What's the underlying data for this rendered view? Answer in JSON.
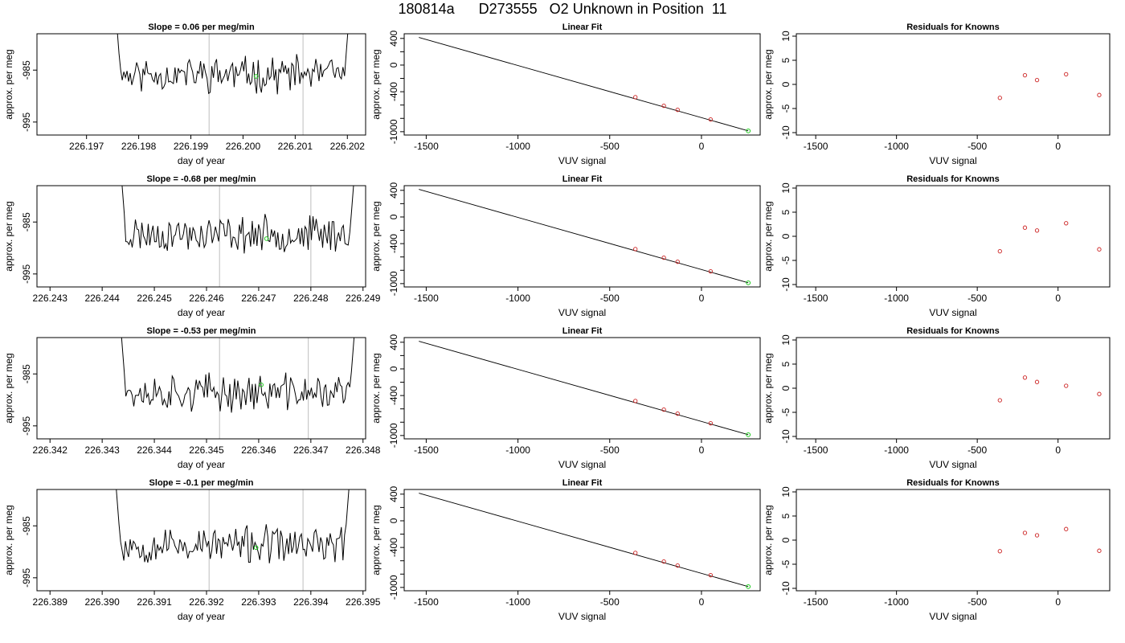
{
  "page": {
    "title": "180814a      D273555   O2 Unknown in Position  11"
  },
  "colors": {
    "trace": "#000000",
    "highlight_point": "#22cc22",
    "known_points": "#cc2222",
    "gap_lines": "#c8c8c8",
    "fit_line": "#000000"
  },
  "chart_data": [
    {
      "type": "line",
      "row": 1,
      "title": "Slope =  0.06  per meg/min",
      "xlabel": "day of year",
      "ylabel": "approx. per meg",
      "xlim": [
        226.19605,
        226.20235
      ],
      "ylim": [
        -997.5,
        -978
      ],
      "xticks": [
        226.197,
        226.198,
        226.199,
        226.2,
        226.201,
        226.202
      ],
      "xtick_labels": [
        "226.197",
        "226.198",
        "226.199",
        "226.200",
        "226.201",
        "226.202"
      ],
      "yticks": [
        -985,
        -995
      ],
      "ytick_labels": [
        "-985",
        "-995"
      ],
      "trace_x": [
        226.1975,
        226.2021
      ],
      "trace_mean": -985.8,
      "trace_amp": 2.7,
      "seed": 11,
      "vlines": [
        226.19935,
        226.20115
      ],
      "highlight": {
        "x": 226.20025,
        "y": -986.2
      }
    },
    {
      "type": "line",
      "row": 2,
      "title": "Slope =  -0.68  per meg/min",
      "xlabel": "day of year",
      "ylabel": "approx. per meg",
      "xlim": [
        226.24275,
        226.24905
      ],
      "ylim": [
        -997.5,
        -978
      ],
      "xticks": [
        226.243,
        226.244,
        226.245,
        226.246,
        226.247,
        226.248,
        226.249
      ],
      "xtick_labels": [
        "226.243",
        "226.244",
        "226.245",
        "226.246",
        "226.247",
        "226.248",
        "226.249"
      ],
      "yticks": [
        -985,
        -995
      ],
      "ytick_labels": [
        "-985",
        "-995"
      ],
      "trace_x": [
        226.2443,
        226.2489
      ],
      "trace_mean": -987.3,
      "trace_amp": 2.7,
      "seed": 23,
      "vlines": [
        226.24625,
        226.248
      ],
      "highlight": {
        "x": 226.24715,
        "y": -988.2
      }
    },
    {
      "type": "line",
      "row": 3,
      "title": "Slope =  -0.53  per meg/min",
      "xlabel": "day of year",
      "ylabel": "approx. per meg",
      "xlim": [
        226.34175,
        226.34805
      ],
      "ylim": [
        -997.5,
        -978
      ],
      "xticks": [
        226.342,
        226.343,
        226.344,
        226.345,
        226.346,
        226.347,
        226.348
      ],
      "xtick_labels": [
        "226.342",
        "226.343",
        "226.344",
        "226.345",
        "226.346",
        "226.347",
        "226.348"
      ],
      "yticks": [
        -985,
        -995
      ],
      "ytick_labels": [
        "-985",
        "-995"
      ],
      "trace_x": [
        226.3433,
        226.3479
      ],
      "trace_mean": -988.6,
      "trace_amp": 2.8,
      "seed": 37,
      "vlines": [
        226.34525,
        226.34695
      ],
      "highlight": {
        "x": 226.34605,
        "y": -987.1
      }
    },
    {
      "type": "line",
      "row": 4,
      "title": "Slope =  -0.1  per meg/min",
      "xlabel": "day of year",
      "ylabel": "approx. per meg",
      "xlim": [
        226.38875,
        226.39505
      ],
      "ylim": [
        -997.5,
        -978
      ],
      "xticks": [
        226.389,
        226.39,
        226.391,
        226.392,
        226.393,
        226.394,
        226.395
      ],
      "xtick_labels": [
        "226.389",
        "226.390",
        "226.391",
        "226.392",
        "226.393",
        "226.394",
        "226.395"
      ],
      "yticks": [
        -985,
        -995
      ],
      "ytick_labels": [
        "-985",
        "-995"
      ],
      "trace_x": [
        226.3902,
        226.3948
      ],
      "trace_mean": -988.7,
      "trace_amp": 2.8,
      "seed": 53,
      "vlines": [
        226.39205,
        226.39385
      ],
      "highlight": {
        "x": 226.39295,
        "y": -989.2
      }
    },
    {
      "type": "scatter",
      "row": 1,
      "title": "Linear Fit",
      "xlabel": "VUV signal",
      "ylabel": "approx. per meg",
      "xlim": [
        -1620,
        320
      ],
      "ylim": [
        -1050,
        470
      ],
      "xticks": [
        -1500,
        -1000,
        -500,
        0
      ],
      "xtick_labels": [
        "-1500",
        "-1000",
        "-500",
        "0"
      ],
      "yticks": [
        400,
        0,
        -400,
        -1000
      ],
      "ytick_labels": [
        "400",
        "0",
        "-400",
        "-1000"
      ],
      "fit_line": {
        "x": [
          -1540,
          255
        ],
        "y": [
          415,
          -988
        ]
      },
      "points_x": [
        -360,
        -205,
        -130,
        50
      ],
      "points_y": [
        -482,
        -611,
        -672,
        -817
      ],
      "highlight": {
        "x": 255,
        "y": -988
      }
    },
    {
      "type": "scatter",
      "row": 2,
      "title": "Linear Fit",
      "xlabel": "VUV signal",
      "ylabel": "approx. per meg",
      "xlim": [
        -1620,
        320
      ],
      "ylim": [
        -1050,
        470
      ],
      "xticks": [
        -1500,
        -1000,
        -500,
        0
      ],
      "xtick_labels": [
        "-1500",
        "-1000",
        "-500",
        "0"
      ],
      "yticks": [
        400,
        0,
        -400,
        -1000
      ],
      "ytick_labels": [
        "400",
        "0",
        "-400",
        "-1000"
      ],
      "fit_line": {
        "x": [
          -1540,
          255
        ],
        "y": [
          415,
          -988
        ]
      },
      "points_x": [
        -360,
        -205,
        -130,
        50
      ],
      "points_y": [
        -482,
        -611,
        -672,
        -817
      ],
      "highlight": {
        "x": 255,
        "y": -988
      }
    },
    {
      "type": "scatter",
      "row": 3,
      "title": "Linear Fit",
      "xlabel": "VUV signal",
      "ylabel": "approx. per meg",
      "xlim": [
        -1620,
        320
      ],
      "ylim": [
        -1050,
        470
      ],
      "xticks": [
        -1500,
        -1000,
        -500,
        0
      ],
      "xtick_labels": [
        "-1500",
        "-1000",
        "-500",
        "0"
      ],
      "yticks": [
        400,
        0,
        -400,
        -1000
      ],
      "ytick_labels": [
        "400",
        "0",
        "-400",
        "-1000"
      ],
      "fit_line": {
        "x": [
          -1540,
          255
        ],
        "y": [
          415,
          -988
        ]
      },
      "points_x": [
        -360,
        -205,
        -130,
        50
      ],
      "points_y": [
        -482,
        -611,
        -672,
        -817
      ],
      "highlight": {
        "x": 255,
        "y": -988
      }
    },
    {
      "type": "scatter",
      "row": 4,
      "title": "Linear Fit",
      "xlabel": "VUV signal",
      "ylabel": "approx. per meg",
      "xlim": [
        -1620,
        320
      ],
      "ylim": [
        -1050,
        470
      ],
      "xticks": [
        -1500,
        -1000,
        -500,
        0
      ],
      "xtick_labels": [
        "-1500",
        "-1000",
        "-500",
        "0"
      ],
      "yticks": [
        400,
        0,
        -400,
        -1000
      ],
      "ytick_labels": [
        "400",
        "0",
        "-400",
        "-1000"
      ],
      "fit_line": {
        "x": [
          -1540,
          255
        ],
        "y": [
          415,
          -988
        ]
      },
      "points_x": [
        -360,
        -205,
        -130,
        50
      ],
      "points_y": [
        -482,
        -611,
        -672,
        -817
      ],
      "highlight": {
        "x": 255,
        "y": -988
      }
    },
    {
      "type": "scatter",
      "row": 1,
      "title": "Residuals for Knowns",
      "xlabel": "VUV signal",
      "ylabel": "approx. per meg",
      "xlim": [
        -1620,
        320
      ],
      "ylim": [
        -10.5,
        10.5
      ],
      "xticks": [
        -1500,
        -1000,
        -500,
        0
      ],
      "xtick_labels": [
        "-1500",
        "-1000",
        "-500",
        "0"
      ],
      "yticks": [
        10,
        5,
        0,
        -5,
        -10
      ],
      "ytick_labels": [
        "10",
        "5",
        "0",
        "-5",
        "-10"
      ],
      "points_x": [
        -360,
        -205,
        -130,
        50,
        255
      ],
      "points_y": [
        -2.8,
        1.9,
        0.9,
        2.1,
        -2.2
      ]
    },
    {
      "type": "scatter",
      "row": 2,
      "title": "Residuals for Knowns",
      "xlabel": "VUV signal",
      "ylabel": "approx. per meg",
      "xlim": [
        -1620,
        320
      ],
      "ylim": [
        -10.5,
        10.5
      ],
      "xticks": [
        -1500,
        -1000,
        -500,
        0
      ],
      "xtick_labels": [
        "-1500",
        "-1000",
        "-500",
        "0"
      ],
      "yticks": [
        10,
        5,
        0,
        -5,
        -10
      ],
      "ytick_labels": [
        "10",
        "5",
        "0",
        "-5",
        "-10"
      ],
      "points_x": [
        -360,
        -205,
        -130,
        50,
        255
      ],
      "points_y": [
        -3.1,
        1.8,
        1.2,
        2.7,
        -2.7
      ]
    },
    {
      "type": "scatter",
      "row": 3,
      "title": "Residuals for Knowns",
      "xlabel": "VUV signal",
      "ylabel": "approx. per meg",
      "xlim": [
        -1620,
        320
      ],
      "ylim": [
        -10.5,
        10.5
      ],
      "xticks": [
        -1500,
        -1000,
        -500,
        0
      ],
      "xtick_labels": [
        "-1500",
        "-1000",
        "-500",
        "0"
      ],
      "yticks": [
        10,
        5,
        0,
        -5,
        -10
      ],
      "ytick_labels": [
        "10",
        "5",
        "0",
        "-5",
        "-10"
      ],
      "points_x": [
        -360,
        -205,
        -130,
        50,
        255
      ],
      "points_y": [
        -2.5,
        2.2,
        1.3,
        0.5,
        -1.2
      ]
    },
    {
      "type": "scatter",
      "row": 4,
      "title": "Residuals for Knowns",
      "xlabel": "VUV signal",
      "ylabel": "approx. per meg",
      "xlim": [
        -1620,
        320
      ],
      "ylim": [
        -10.5,
        10.5
      ],
      "xticks": [
        -1500,
        -1000,
        -500,
        0
      ],
      "xtick_labels": [
        "-1500",
        "-1000",
        "-500",
        "0"
      ],
      "yticks": [
        10,
        5,
        0,
        -5,
        -10
      ],
      "ytick_labels": [
        "10",
        "5",
        "0",
        "-5",
        "-10"
      ],
      "points_x": [
        -360,
        -205,
        -130,
        50,
        255
      ],
      "points_y": [
        -2.3,
        1.5,
        1.0,
        2.3,
        -2.2
      ]
    }
  ]
}
